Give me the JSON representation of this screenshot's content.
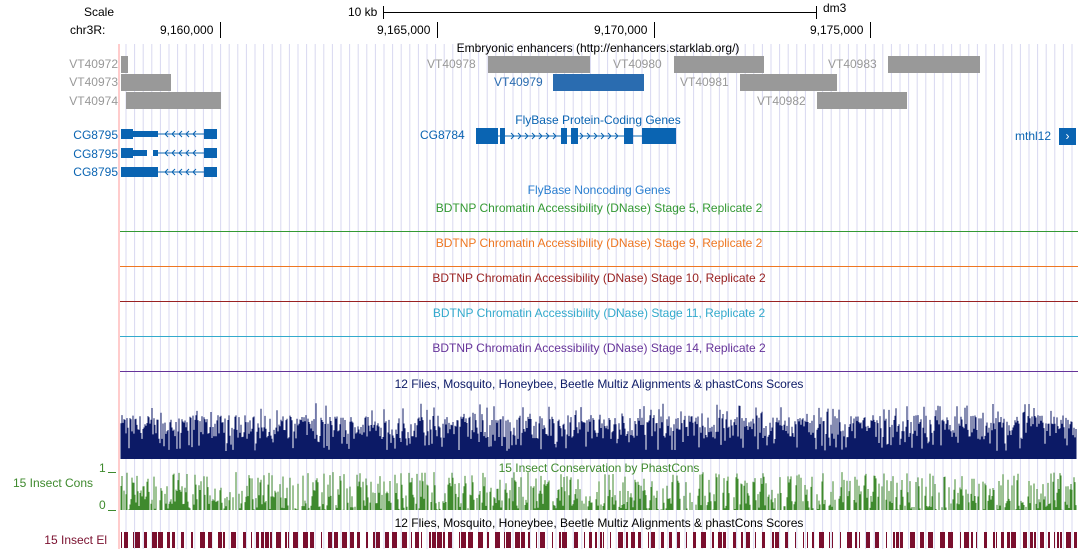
{
  "scale": {
    "label": "Scale",
    "bar_label": "10 kb",
    "assembly": "dm3"
  },
  "position": {
    "chrom_label": "chr3R:",
    "ticks": [
      {
        "label": "9,160,000"
      },
      {
        "label": "9,165,000"
      },
      {
        "label": "9,170,000"
      },
      {
        "label": "9,175,000"
      }
    ]
  },
  "tracks": {
    "enhancers": {
      "title": "Embryonic enhancers (http://enhancers.starklab.org/)",
      "items": [
        {
          "id": "VT40972",
          "color": "#999999"
        },
        {
          "id": "VT40973",
          "color": "#999999"
        },
        {
          "id": "VT40974",
          "color": "#999999"
        },
        {
          "id": "VT40978",
          "color": "#999999"
        },
        {
          "id": "VT40979",
          "color": "#2a6cb0",
          "highlight": true
        },
        {
          "id": "VT40980",
          "color": "#999999"
        },
        {
          "id": "VT40981",
          "color": "#999999"
        },
        {
          "id": "VT40982",
          "color": "#999999"
        },
        {
          "id": "VT40983",
          "color": "#999999"
        }
      ]
    },
    "protein_genes": {
      "title": "FlyBase Protein-Coding Genes",
      "color": "#0a64b2",
      "genes": [
        {
          "name": "CG8795",
          "strand": "-"
        },
        {
          "name": "CG8795",
          "strand": "-"
        },
        {
          "name": "CG8795",
          "strand": "-"
        },
        {
          "name": "CG8784",
          "strand": "+"
        },
        {
          "name": "mthl12",
          "strand": "+",
          "offscreen": true
        }
      ]
    },
    "noncoding": {
      "title": "FlyBase Noncoding Genes",
      "color": "#2a7fd0"
    },
    "dnase": [
      {
        "title": "BDTNP Chromatin Accessibility (DNase) Stage 5, Replicate 2",
        "color": "#339933"
      },
      {
        "title": "BDTNP Chromatin Accessibility (DNase) Stage 9, Replicate 2",
        "color": "#ee7722"
      },
      {
        "title": "BDTNP Chromatin Accessibility (DNase) Stage 10, Replicate 2",
        "color": "#992222"
      },
      {
        "title": "BDTNP Chromatin Accessibility (DNase) Stage 11, Replicate 2",
        "color": "#33aacc"
      },
      {
        "title": "BDTNP Chromatin Accessibility (DNase) Stage 14, Replicate 2",
        "color": "#663399"
      }
    ],
    "multiz": {
      "title": "12 Flies, Mosquito, Honeybee, Beetle Multiz Alignments & phastCons Scores",
      "color": "#0c1a66"
    },
    "phastcons": {
      "title": "15 Insect Conservation by PhastCons",
      "side_label": "15 Insect Cons",
      "ymax_label": "1",
      "ymin_label": "0",
      "color": "#3f8a2e"
    },
    "elements": {
      "title": "12 Flies, Mosquito, Honeybee, Beetle Multiz Alignments & phastCons Scores",
      "side_label": "15 Insect El",
      "color": "#7a0f2e"
    }
  }
}
